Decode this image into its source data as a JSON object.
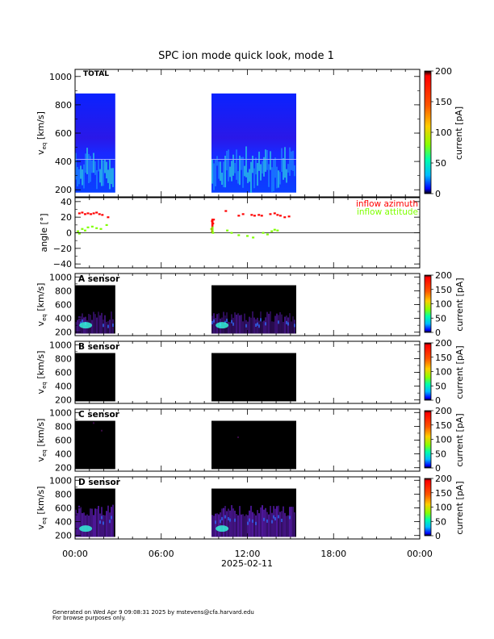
{
  "title": "SPC ion mode quick look, mode 1",
  "chart_data": [
    {
      "type": "heatmap",
      "panel_label": "TOTAL",
      "ylabel_main": "v",
      "ylabel_sub": "eq",
      "ylabel_unit": "[km/s]",
      "yticks": [
        "1000",
        "800",
        "600",
        "400",
        "200"
      ],
      "ylim": [
        150,
        1050
      ],
      "colorbar": {
        "label": "current [pA]",
        "ticks": [
          "200",
          "150",
          "100",
          "50",
          "0"
        ],
        "range": [
          0,
          200
        ]
      },
      "data_segments_hours": [
        [
          0.0,
          2.8
        ],
        [
          9.5,
          15.4
        ]
      ],
      "data_vrange": [
        180,
        880
      ]
    },
    {
      "type": "scatter",
      "ylabel": "angle [°]",
      "yticks": [
        "40",
        "20",
        "0",
        "−20",
        "−40"
      ],
      "ylim": [
        -45,
        45
      ],
      "zero_line": true,
      "series": [
        {
          "name": "inflow azimuth",
          "color": "#ff0000",
          "points": [
            [
              0.3,
              25
            ],
            [
              0.5,
              26
            ],
            [
              0.7,
              24
            ],
            [
              0.9,
              25
            ],
            [
              1.1,
              24
            ],
            [
              1.3,
              25
            ],
            [
              1.5,
              26
            ],
            [
              1.7,
              24
            ],
            [
              1.9,
              23
            ],
            [
              2.3,
              20
            ],
            [
              9.55,
              15
            ],
            [
              9.6,
              12
            ],
            [
              9.65,
              17
            ],
            [
              10.5,
              28
            ],
            [
              11.4,
              22
            ],
            [
              11.7,
              24
            ],
            [
              12.3,
              23
            ],
            [
              12.5,
              22
            ],
            [
              12.8,
              23
            ],
            [
              13.0,
              22
            ],
            [
              13.6,
              24
            ],
            [
              13.9,
              25
            ],
            [
              14.1,
              23
            ],
            [
              14.3,
              22
            ],
            [
              14.6,
              20
            ],
            [
              14.9,
              21
            ]
          ]
        },
        {
          "name": "inflow attitude",
          "color": "#7fff00",
          "points": [
            [
              0.2,
              2
            ],
            [
              0.3,
              -1
            ],
            [
              0.5,
              5
            ],
            [
              0.7,
              3
            ],
            [
              0.9,
              7
            ],
            [
              1.2,
              8
            ],
            [
              1.5,
              6
            ],
            [
              1.8,
              5
            ],
            [
              2.2,
              10
            ],
            [
              9.5,
              5
            ],
            [
              9.55,
              2
            ],
            [
              9.6,
              0
            ],
            [
              10.6,
              3
            ],
            [
              10.9,
              0
            ],
            [
              11.4,
              -3
            ],
            [
              12.0,
              -4
            ],
            [
              12.4,
              -6
            ],
            [
              13.1,
              0
            ],
            [
              13.4,
              -2
            ],
            [
              13.7,
              2
            ],
            [
              13.9,
              4
            ],
            [
              14.1,
              3
            ]
          ]
        }
      ]
    },
    {
      "type": "heatmap",
      "panel_label": "A sensor",
      "ylabel_main": "v",
      "ylabel_sub": "eq",
      "ylabel_unit": "[km/s]",
      "yticks": [
        "1000",
        "800",
        "600",
        "400",
        "200"
      ],
      "ylim": [
        150,
        1050
      ],
      "colorbar": {
        "label": "current [pA]",
        "ticks": [
          "200",
          "150",
          "100",
          "50",
          "0"
        ],
        "range": [
          0,
          200
        ]
      },
      "data_segments_hours": [
        [
          0.0,
          2.8
        ],
        [
          9.5,
          15.4
        ]
      ],
      "data_vrange": [
        180,
        880
      ]
    },
    {
      "type": "heatmap",
      "panel_label": "B sensor",
      "ylabel_main": "v",
      "ylabel_sub": "eq",
      "ylabel_unit": "[km/s]",
      "yticks": [
        "1000",
        "800",
        "600",
        "400",
        "200"
      ],
      "ylim": [
        150,
        1050
      ],
      "colorbar": {
        "label": "current [pA]",
        "ticks": [
          "200",
          "150",
          "100",
          "50",
          "0"
        ],
        "range": [
          0,
          200
        ]
      },
      "data_segments_hours": [
        [
          0.0,
          2.8
        ],
        [
          9.5,
          15.4
        ]
      ],
      "data_vrange": [
        180,
        880
      ]
    },
    {
      "type": "heatmap",
      "panel_label": "C sensor",
      "ylabel_main": "v",
      "ylabel_sub": "eq",
      "ylabel_unit": "[km/s]",
      "yticks": [
        "1000",
        "800",
        "600",
        "400",
        "200"
      ],
      "ylim": [
        150,
        1050
      ],
      "colorbar": {
        "label": "current [pA]",
        "ticks": [
          "200",
          "150",
          "100",
          "50",
          "0"
        ],
        "range": [
          0,
          200
        ]
      },
      "data_segments_hours": [
        [
          0.0,
          2.8
        ],
        [
          9.5,
          15.4
        ]
      ],
      "data_vrange": [
        180,
        880
      ]
    },
    {
      "type": "heatmap",
      "panel_label": "D sensor",
      "ylabel_main": "v",
      "ylabel_sub": "eq",
      "ylabel_unit": "[km/s]",
      "yticks": [
        "1000",
        "800",
        "600",
        "400",
        "200"
      ],
      "ylim": [
        150,
        1050
      ],
      "colorbar": {
        "label": "current [pA]",
        "ticks": [
          "200",
          "150",
          "100",
          "50",
          "0"
        ],
        "range": [
          0,
          200
        ]
      },
      "data_segments_hours": [
        [
          0.0,
          2.8
        ],
        [
          9.5,
          15.4
        ]
      ],
      "data_vrange": [
        180,
        880
      ]
    }
  ],
  "xaxis": {
    "ticks": [
      "00:00",
      "06:00",
      "12:00",
      "18:00",
      "00:00"
    ],
    "xlim_hours": [
      0,
      24
    ],
    "date": "2025-02-11"
  },
  "footer": {
    "line1": "Generated on Wed Apr  9 09:08:31 2025 by mstevens@cfa.harvard.edu",
    "line2": "For browse purposes only."
  },
  "colors": {
    "heat_bg_total": "#0a1fff",
    "heat_bg_sensor": "#000000",
    "core_cyan": "#33ffdd",
    "core_purple": "#6a1fd0"
  }
}
